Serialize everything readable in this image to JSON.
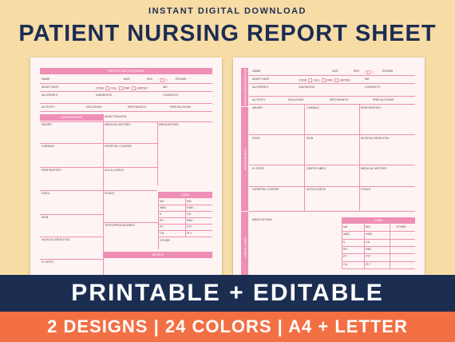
{
  "header": {
    "subtitle": "INSTANT DIGITAL DOWNLOAD",
    "title": "PATIENT NURSING REPORT SHEET"
  },
  "sheet1": {
    "bar_background": "PATIENT BACKGROUND",
    "name": "NAME",
    "age": "AGE",
    "sex": "SEX",
    "sex_f": "F",
    "sex_m": "M",
    "room": "ROOM#",
    "admit_date": "ADMIT DATE",
    "code": "CODE",
    "full": "FULL",
    "dnr": "DNR",
    "limited": "LIMITED",
    "md": "MD",
    "allergies": "ALLERGIES",
    "diagnosis": "DIAGNOSIS",
    "consults": "CONSULTS",
    "activity": "ACTIVITY:",
    "isolation": "ISOLATION:",
    "restraints": "RESTRAINTS:",
    "precautions": "PRECAUTIONS:",
    "bar_assessment": "ASSESSMENT",
    "admit_reason": "ADMIT REASON",
    "neuro": "NEURO",
    "medical_history": "MEDICAL HISTORY",
    "medications": "MEDICATIONS",
    "cardiac": "CARDIAC",
    "hospital_course": "HOSPITAL COURSE",
    "respiratory": "RESPIRATORY",
    "accu_check": "ACCU-CHECK",
    "gu_gi": "GI/GU",
    "vitals": "VITALS",
    "bar_labs": "LABS",
    "labs": [
      [
        "NA",
        "MG"
      ],
      [
        "WBC",
        "HGB"
      ],
      [
        "K",
        "CA"
      ],
      [
        "PH",
        "RBC"
      ],
      [
        "PT",
        "PTT"
      ],
      [
        "CR",
        "PLT"
      ]
    ],
    "other": "OTHER",
    "skin": "SKIN",
    "tests": "TESTS/PROCEDURES",
    "musculoskeletal": "MUSCULOSKELETAL",
    "bar_notes": "NOTES",
    "iv_sites": "IV SITES"
  },
  "sheet2": {
    "side_background": "PATIENT BACKGROUND",
    "side_assessment": "ASSESSMENT",
    "side_meds_labs": "MEDS / LABS",
    "name": "NAME",
    "age": "AGE",
    "sex": "SEX",
    "sex_f": "F",
    "sex_m": "M",
    "room": "ROOM#",
    "admit_date": "ADMIT DATE",
    "code": "CODE",
    "full": "FULL",
    "dnr": "DNR",
    "limited": "LIMITED",
    "md": "MD",
    "allergies": "ALLERGIES",
    "diagnosis": "DIAGNOSIS",
    "consults": "CONSULTS",
    "activity": "ACTIVITY:",
    "isolation": "ISOLATION:",
    "restraints": "RESTRAINTS:",
    "precautions": "PRECAUTIONS:",
    "neuro": "NEURO",
    "cardiac": "CARDIAC",
    "respiratory": "RESPIRATORY",
    "gi_gu": "GI/GU",
    "skin": "SKIN",
    "musculoskeletal": "MUSCULOSKELETAL",
    "iv_sites": "IV SITES",
    "drips_tubes": "DRIPS/TUBES",
    "medical_history": "MEDICAL HISTORY",
    "hospital_course": "HOSPITAL COURSE",
    "accu_check": "ACCU-CHECK",
    "vitals": "VITALS",
    "medications": "MEDICATIONS",
    "bar_labs": "LABS",
    "labs": [
      [
        "NA",
        "MG"
      ],
      [
        "WBC",
        "HGB"
      ],
      [
        "K",
        "CA"
      ],
      [
        "PH",
        "RBC"
      ],
      [
        "PT",
        "PTT"
      ],
      [
        "CA",
        "PLT"
      ]
    ],
    "other": "OTHER"
  },
  "banner": {
    "line1": "PRINTABLE + EDITABLE",
    "line2": "2 DESIGNS | 24 COLORS | A4 + LETTER"
  },
  "colors": {
    "background": "#f7dca6",
    "navy": "#1c2d52",
    "pink": "#ef8fb6",
    "orange": "#f36f44"
  }
}
